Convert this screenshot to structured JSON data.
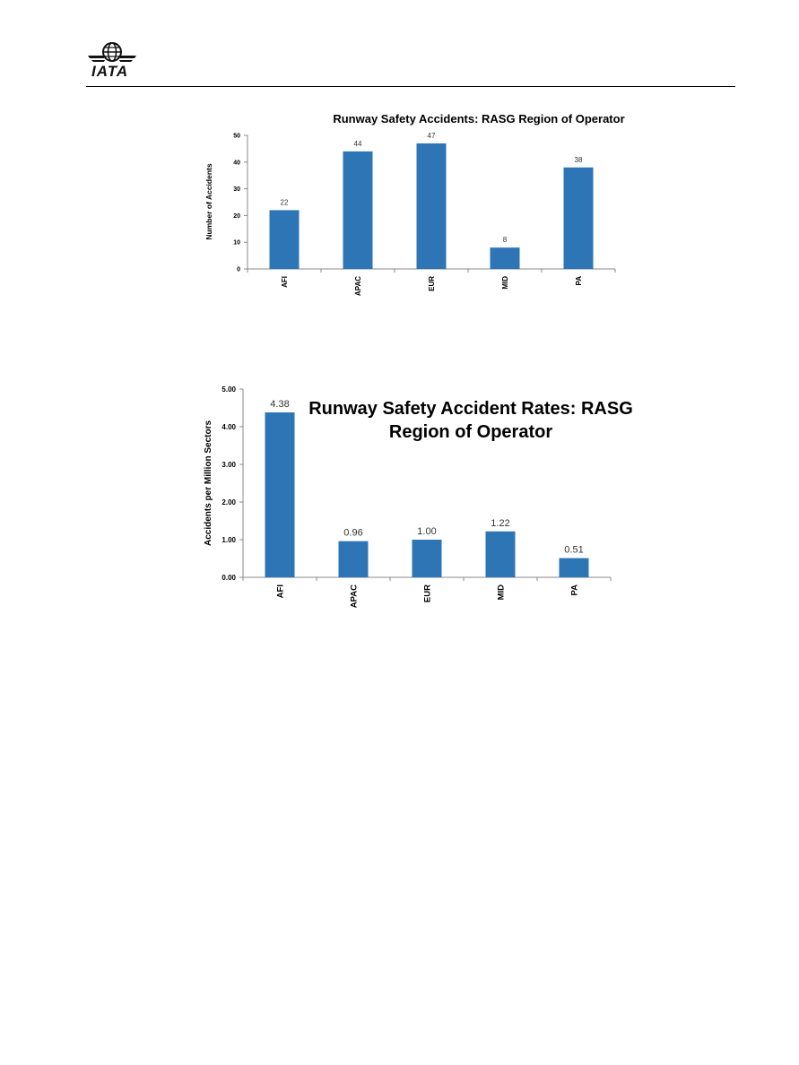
{
  "header": {
    "logo_text": "IATA"
  },
  "chart_data": [
    {
      "type": "bar",
      "title": "Runway Safety Accidents: RASG Region of Operator",
      "ylabel": "Number of Accidents",
      "xlabel": "",
      "categories": [
        "AFI",
        "APAC",
        "EUR",
        "MID",
        "PA"
      ],
      "values": [
        22,
        44,
        47,
        8,
        38
      ],
      "value_labels": [
        "22",
        "44",
        "47",
        "8",
        "38"
      ],
      "ylim": [
        0,
        50
      ],
      "yticks": [
        "0",
        "10",
        "20",
        "30",
        "40",
        "50"
      ],
      "bar_color": "#2E75B6",
      "grid": false
    },
    {
      "type": "bar",
      "title": "Runway Safety Accident Rates: RASG Region of Operator",
      "ylabel": "Accidents per Million Sectors",
      "xlabel": "",
      "categories": [
        "AFI",
        "APAC",
        "EUR",
        "MID",
        "PA"
      ],
      "values": [
        4.38,
        0.96,
        1.0,
        1.22,
        0.51
      ],
      "value_labels": [
        "4.38",
        "0.96",
        "1.00",
        "1.22",
        "0.51"
      ],
      "ylim": [
        0,
        5
      ],
      "yticks": [
        "0.00",
        "1.00",
        "2.00",
        "3.00",
        "4.00",
        "5.00"
      ],
      "bar_color": "#2E75B6",
      "grid": false
    }
  ]
}
